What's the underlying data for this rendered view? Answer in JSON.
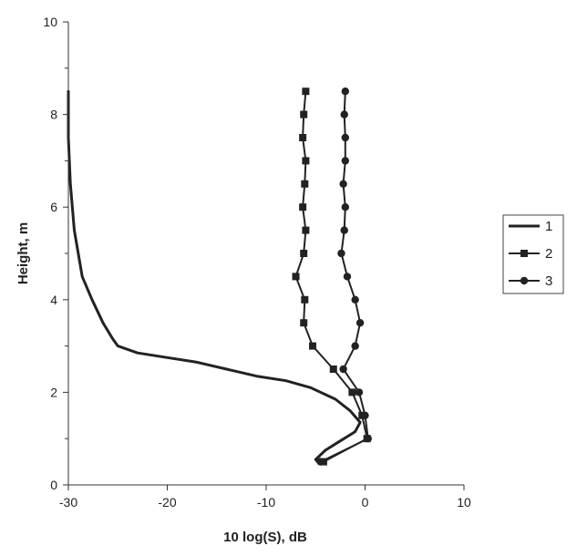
{
  "chart_data": {
    "type": "line",
    "title": "",
    "xlabel": "10 log(S), dB",
    "ylabel": "Height, m",
    "xlim": [
      -30,
      10
    ],
    "ylim": [
      0,
      10
    ],
    "x_ticks": [
      -30,
      -20,
      -10,
      0,
      10
    ],
    "y_ticks": [
      0,
      2,
      4,
      6,
      8,
      10
    ],
    "grid": false,
    "legend_position": "right",
    "series": [
      {
        "name": "1",
        "marker": "none",
        "color": "#222222",
        "points": [
          [
            -30,
            8.5
          ],
          [
            -30,
            7.5
          ],
          [
            -29.8,
            6.5
          ],
          [
            -29.4,
            5.5
          ],
          [
            -28.6,
            4.5
          ],
          [
            -27.6,
            4.0
          ],
          [
            -26.5,
            3.5
          ],
          [
            -25.5,
            3.15
          ],
          [
            -25.0,
            3.0
          ],
          [
            -23.0,
            2.85
          ],
          [
            -20.0,
            2.75
          ],
          [
            -17.0,
            2.65
          ],
          [
            -14.0,
            2.5
          ],
          [
            -11.0,
            2.35
          ],
          [
            -8.0,
            2.25
          ],
          [
            -5.5,
            2.1
          ],
          [
            -3.0,
            1.85
          ],
          [
            -1.5,
            1.6
          ],
          [
            -0.5,
            1.35
          ],
          [
            -1.0,
            1.15
          ],
          [
            -2.5,
            0.95
          ],
          [
            -4.0,
            0.75
          ],
          [
            -5.0,
            0.55
          ],
          [
            -4.8,
            0.5
          ]
        ]
      },
      {
        "name": "2",
        "marker": "square",
        "color": "#222222",
        "points": [
          [
            -6.0,
            8.5
          ],
          [
            -6.2,
            8.0
          ],
          [
            -6.3,
            7.5
          ],
          [
            -6.0,
            7.0
          ],
          [
            -6.1,
            6.5
          ],
          [
            -6.3,
            6.0
          ],
          [
            -6.0,
            5.5
          ],
          [
            -6.2,
            5.0
          ],
          [
            -7.0,
            4.5
          ],
          [
            -6.1,
            4.0
          ],
          [
            -6.2,
            3.5
          ],
          [
            -5.3,
            3.0
          ],
          [
            -3.2,
            2.5
          ],
          [
            -1.3,
            2.0
          ],
          [
            -0.3,
            1.5
          ],
          [
            0.2,
            1.0
          ],
          [
            -4.2,
            0.5
          ]
        ]
      },
      {
        "name": "3",
        "marker": "circle",
        "color": "#222222",
        "points": [
          [
            -2.0,
            8.5
          ],
          [
            -2.1,
            8.0
          ],
          [
            -2.0,
            7.5
          ],
          [
            -2.0,
            7.0
          ],
          [
            -2.2,
            6.5
          ],
          [
            -2.0,
            6.0
          ],
          [
            -2.1,
            5.5
          ],
          [
            -2.4,
            5.0
          ],
          [
            -1.8,
            4.5
          ],
          [
            -1.0,
            4.0
          ],
          [
            -0.5,
            3.5
          ],
          [
            -1.0,
            3.0
          ],
          [
            -2.2,
            2.5
          ],
          [
            -0.6,
            2.0
          ],
          [
            0.0,
            1.5
          ],
          [
            0.3,
            1.0
          ],
          [
            -4.5,
            0.5
          ]
        ]
      }
    ]
  }
}
